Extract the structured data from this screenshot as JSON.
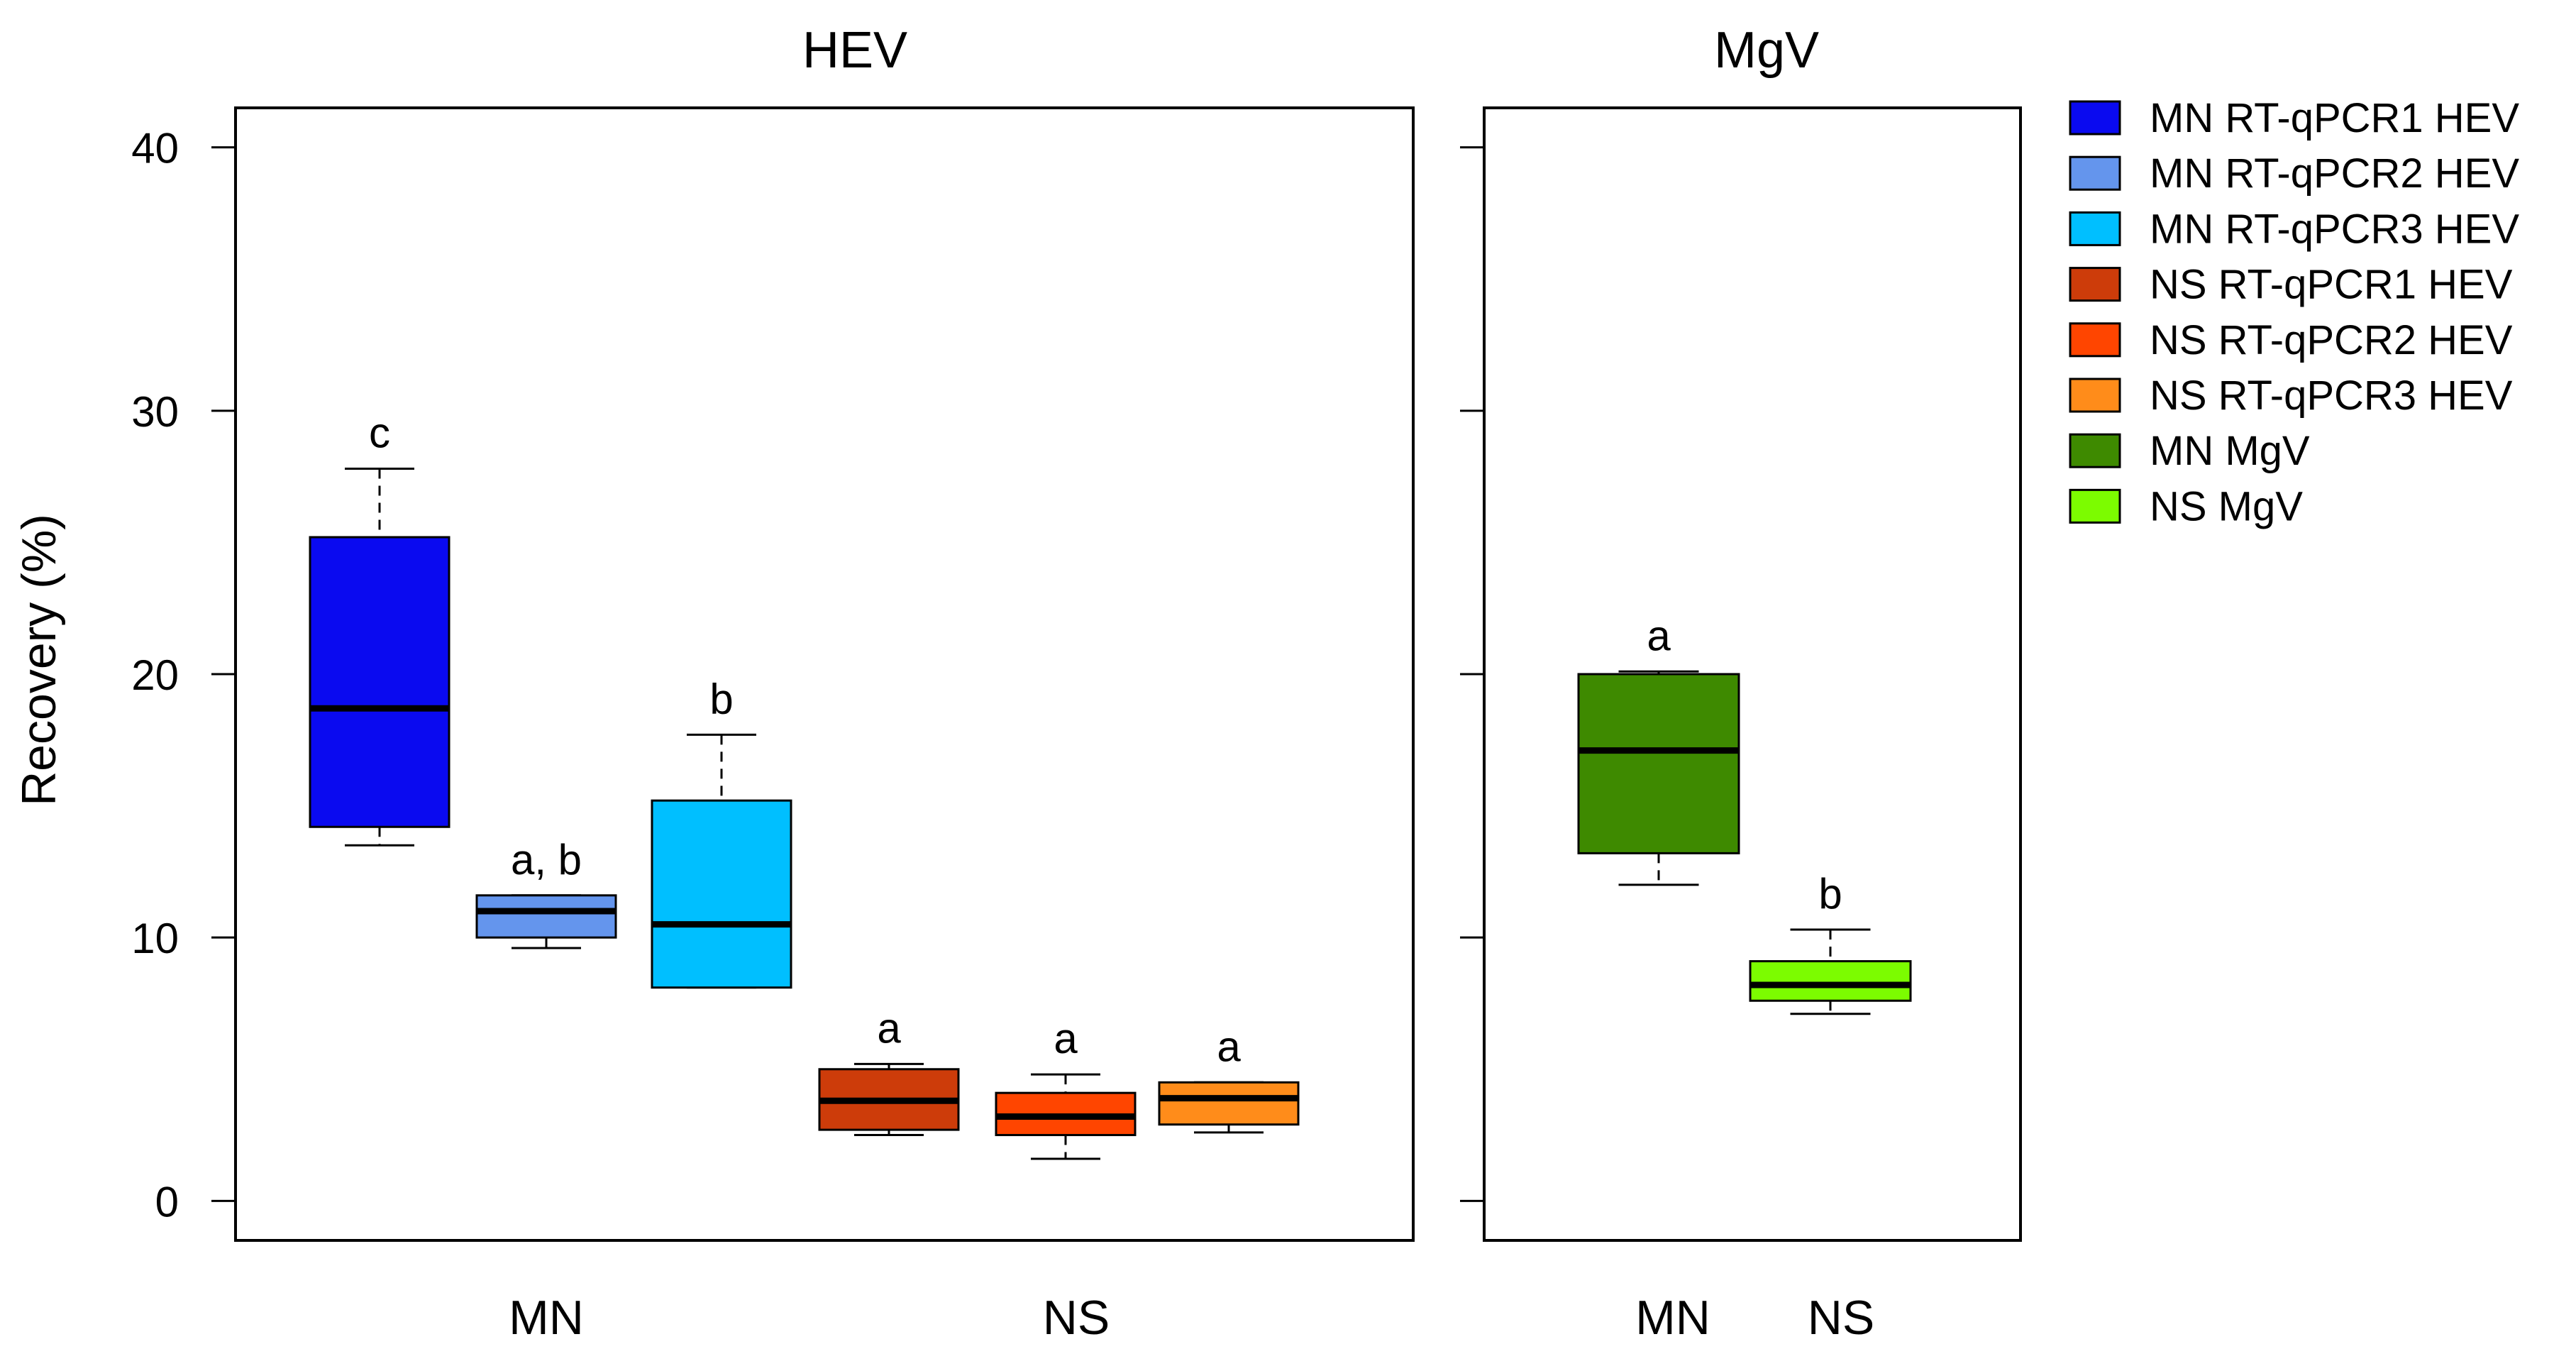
{
  "chart_data": {
    "type": "boxplot",
    "ylabel": "Recovery (%)",
    "ylim": [
      -1.5,
      41.5
    ],
    "yticks": [
      0,
      10,
      20,
      30,
      40
    ],
    "panels": [
      {
        "title": "HEV",
        "groups": [
          "MN",
          "NS"
        ],
        "boxes": [
          {
            "name": "MN RT-qPCR1 HEV",
            "group": "MN",
            "color": "#0a0af0",
            "whisker_low": 13.5,
            "q1": 14.2,
            "median": 18.7,
            "q3": 25.2,
            "whisker_high": 27.8,
            "letter": "c"
          },
          {
            "name": "MN RT-qPCR2 HEV",
            "group": "MN",
            "color": "#6495ed",
            "whisker_low": 9.6,
            "q1": 10.0,
            "median": 11.0,
            "q3": 11.6,
            "whisker_high": 11.6,
            "letter": "a, b"
          },
          {
            "name": "MN RT-qPCR3 HEV",
            "group": "MN",
            "color": "#00bfff",
            "whisker_low": 8.1,
            "q1": 8.1,
            "median": 10.5,
            "q3": 15.2,
            "whisker_high": 17.7,
            "letter": "b"
          },
          {
            "name": "NS RT-qPCR1 HEV",
            "group": "NS",
            "color": "#cd3c0a",
            "whisker_low": 2.5,
            "q1": 2.7,
            "median": 3.8,
            "q3": 5.0,
            "whisker_high": 5.2,
            "letter": "a"
          },
          {
            "name": "NS RT-qPCR2 HEV",
            "group": "NS",
            "color": "#ff4500",
            "whisker_low": 1.6,
            "q1": 2.5,
            "median": 3.2,
            "q3": 4.1,
            "whisker_high": 4.8,
            "letter": "a"
          },
          {
            "name": "NS RT-qPCR3 HEV",
            "group": "NS",
            "color": "#ff8c1a",
            "whisker_low": 2.6,
            "q1": 2.9,
            "median": 3.9,
            "q3": 4.5,
            "whisker_high": 4.5,
            "letter": "a"
          }
        ]
      },
      {
        "title": "MgV",
        "groups": [
          "MN",
          "NS"
        ],
        "boxes": [
          {
            "name": "MN MgV",
            "group": "MN",
            "color": "#3e8a00",
            "whisker_low": 12.0,
            "q1": 13.2,
            "median": 17.1,
            "q3": 20.0,
            "whisker_high": 20.1,
            "letter": "a"
          },
          {
            "name": "NS MgV",
            "group": "NS",
            "color": "#7cfc00",
            "whisker_low": 7.1,
            "q1": 7.6,
            "median": 8.2,
            "q3": 9.1,
            "whisker_high": 10.3,
            "letter": "b"
          }
        ]
      }
    ],
    "legend": {
      "position": "right",
      "entries": [
        {
          "label": "MN RT-qPCR1 HEV",
          "color": "#0a0af0"
        },
        {
          "label": "MN RT-qPCR2 HEV",
          "color": "#6495ed"
        },
        {
          "label": "MN RT-qPCR3 HEV",
          "color": "#00bfff"
        },
        {
          "label": "NS RT-qPCR1 HEV",
          "color": "#cd3c0a"
        },
        {
          "label": "NS RT-qPCR2 HEV",
          "color": "#ff4500"
        },
        {
          "label": "NS RT-qPCR3 HEV",
          "color": "#ff8c1a"
        },
        {
          "label": "MN MgV",
          "color": "#3e8a00"
        },
        {
          "label": "NS MgV",
          "color": "#7cfc00"
        }
      ]
    }
  }
}
